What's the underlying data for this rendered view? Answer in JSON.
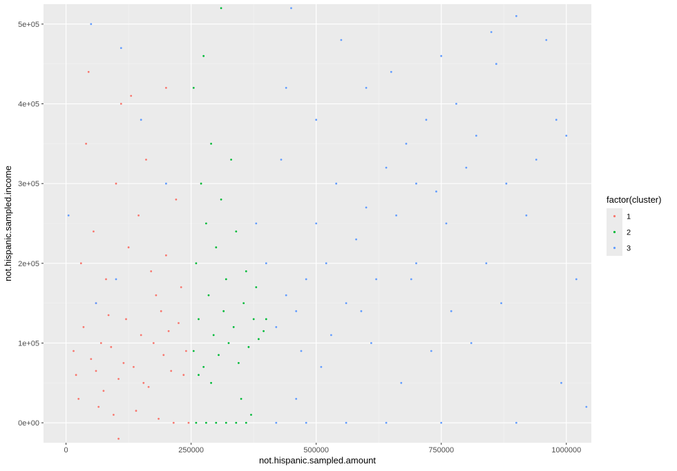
{
  "chart_data": {
    "type": "scatter",
    "title": "",
    "xlabel": "not.hispanic.sampled.amount",
    "ylabel": "not.hispanic.sampled.income",
    "xlim": [
      -45000,
      1050000
    ],
    "ylim": [
      -25000,
      525000
    ],
    "x_ticks": [
      0,
      250000,
      500000,
      750000,
      1000000
    ],
    "x_tick_labels": [
      "0",
      "250000",
      "500000",
      "750000",
      "1000000"
    ],
    "y_ticks": [
      0,
      100000,
      200000,
      300000,
      400000,
      500000
    ],
    "y_tick_labels": [
      "0e+00",
      "1e+05",
      "2e+05",
      "3e+05",
      "4e+05",
      "5e+05"
    ],
    "grid": true,
    "legend": {
      "title": "factor(cluster)",
      "position": "right"
    },
    "series": [
      {
        "name": "1",
        "color": "#F8766D",
        "points": [
          [
            20000,
            60000
          ],
          [
            35000,
            120000
          ],
          [
            50000,
            80000
          ],
          [
            60000,
            150000
          ],
          [
            75000,
            40000
          ],
          [
            90000,
            95000
          ],
          [
            105000,
            55000
          ],
          [
            120000,
            130000
          ],
          [
            135000,
            70000
          ],
          [
            150000,
            110000
          ],
          [
            165000,
            45000
          ],
          [
            180000,
            160000
          ],
          [
            195000,
            85000
          ],
          [
            210000,
            65000
          ],
          [
            225000,
            125000
          ],
          [
            240000,
            90000
          ],
          [
            30000,
            200000
          ],
          [
            55000,
            240000
          ],
          [
            80000,
            180000
          ],
          [
            100000,
            300000
          ],
          [
            125000,
            220000
          ],
          [
            145000,
            260000
          ],
          [
            170000,
            190000
          ],
          [
            200000,
            210000
          ],
          [
            230000,
            170000
          ],
          [
            40000,
            350000
          ],
          [
            110000,
            400000
          ],
          [
            200000,
            420000
          ],
          [
            25000,
            30000
          ],
          [
            65000,
            20000
          ],
          [
            95000,
            10000
          ],
          [
            140000,
            15000
          ],
          [
            185000,
            5000
          ],
          [
            215000,
            0
          ],
          [
            245000,
            0
          ],
          [
            105000,
            -20000
          ],
          [
            45000,
            440000
          ],
          [
            130000,
            410000
          ],
          [
            160000,
            330000
          ],
          [
            220000,
            280000
          ],
          [
            15000,
            90000
          ],
          [
            70000,
            100000
          ],
          [
            115000,
            75000
          ],
          [
            155000,
            50000
          ],
          [
            190000,
            140000
          ],
          [
            235000,
            60000
          ],
          [
            85000,
            135000
          ],
          [
            175000,
            100000
          ],
          [
            60000,
            65000
          ],
          [
            205000,
            115000
          ]
        ]
      },
      {
        "name": "2",
        "color": "#00BA38",
        "points": [
          [
            255000,
            90000
          ],
          [
            265000,
            130000
          ],
          [
            275000,
            70000
          ],
          [
            285000,
            160000
          ],
          [
            295000,
            110000
          ],
          [
            305000,
            85000
          ],
          [
            315000,
            140000
          ],
          [
            325000,
            100000
          ],
          [
            335000,
            120000
          ],
          [
            345000,
            75000
          ],
          [
            355000,
            150000
          ],
          [
            365000,
            95000
          ],
          [
            375000,
            130000
          ],
          [
            385000,
            105000
          ],
          [
            395000,
            115000
          ],
          [
            260000,
            200000
          ],
          [
            280000,
            250000
          ],
          [
            300000,
            220000
          ],
          [
            320000,
            180000
          ],
          [
            340000,
            240000
          ],
          [
            360000,
            190000
          ],
          [
            380000,
            170000
          ],
          [
            270000,
            300000
          ],
          [
            290000,
            350000
          ],
          [
            310000,
            280000
          ],
          [
            330000,
            330000
          ],
          [
            255000,
            420000
          ],
          [
            275000,
            460000
          ],
          [
            310000,
            520000
          ],
          [
            260000,
            0
          ],
          [
            280000,
            0
          ],
          [
            300000,
            0
          ],
          [
            320000,
            0
          ],
          [
            340000,
            0
          ],
          [
            360000,
            0
          ],
          [
            370000,
            10000
          ],
          [
            350000,
            30000
          ],
          [
            290000,
            50000
          ],
          [
            265000,
            60000
          ],
          [
            400000,
            130000
          ]
        ]
      },
      {
        "name": "3",
        "color": "#619CFF",
        "points": [
          [
            5000,
            260000
          ],
          [
            50000,
            500000
          ],
          [
            110000,
            470000
          ],
          [
            150000,
            380000
          ],
          [
            200000,
            300000
          ],
          [
            100000,
            180000
          ],
          [
            60000,
            150000
          ],
          [
            400000,
            200000
          ],
          [
            420000,
            120000
          ],
          [
            440000,
            160000
          ],
          [
            460000,
            140000
          ],
          [
            480000,
            180000
          ],
          [
            500000,
            250000
          ],
          [
            520000,
            200000
          ],
          [
            540000,
            300000
          ],
          [
            560000,
            150000
          ],
          [
            580000,
            230000
          ],
          [
            600000,
            270000
          ],
          [
            620000,
            180000
          ],
          [
            640000,
            320000
          ],
          [
            660000,
            260000
          ],
          [
            680000,
            350000
          ],
          [
            700000,
            200000
          ],
          [
            720000,
            380000
          ],
          [
            740000,
            290000
          ],
          [
            760000,
            250000
          ],
          [
            780000,
            400000
          ],
          [
            800000,
            320000
          ],
          [
            820000,
            360000
          ],
          [
            840000,
            200000
          ],
          [
            860000,
            450000
          ],
          [
            880000,
            300000
          ],
          [
            900000,
            510000
          ],
          [
            920000,
            260000
          ],
          [
            940000,
            330000
          ],
          [
            960000,
            480000
          ],
          [
            980000,
            380000
          ],
          [
            1000000,
            360000
          ],
          [
            1020000,
            180000
          ],
          [
            1040000,
            20000
          ],
          [
            450000,
            520000
          ],
          [
            550000,
            480000
          ],
          [
            650000,
            440000
          ],
          [
            750000,
            460000
          ],
          [
            850000,
            490000
          ],
          [
            500000,
            380000
          ],
          [
            600000,
            420000
          ],
          [
            700000,
            300000
          ],
          [
            380000,
            250000
          ],
          [
            430000,
            330000
          ],
          [
            470000,
            90000
          ],
          [
            510000,
            70000
          ],
          [
            530000,
            110000
          ],
          [
            460000,
            30000
          ],
          [
            480000,
            0
          ],
          [
            420000,
            0
          ],
          [
            560000,
            0
          ],
          [
            640000,
            0
          ],
          [
            750000,
            0
          ],
          [
            900000,
            0
          ],
          [
            990000,
            50000
          ],
          [
            870000,
            150000
          ],
          [
            810000,
            100000
          ],
          [
            770000,
            140000
          ],
          [
            730000,
            90000
          ],
          [
            690000,
            180000
          ],
          [
            670000,
            50000
          ],
          [
            610000,
            100000
          ],
          [
            590000,
            140000
          ],
          [
            440000,
            420000
          ]
        ]
      }
    ]
  }
}
